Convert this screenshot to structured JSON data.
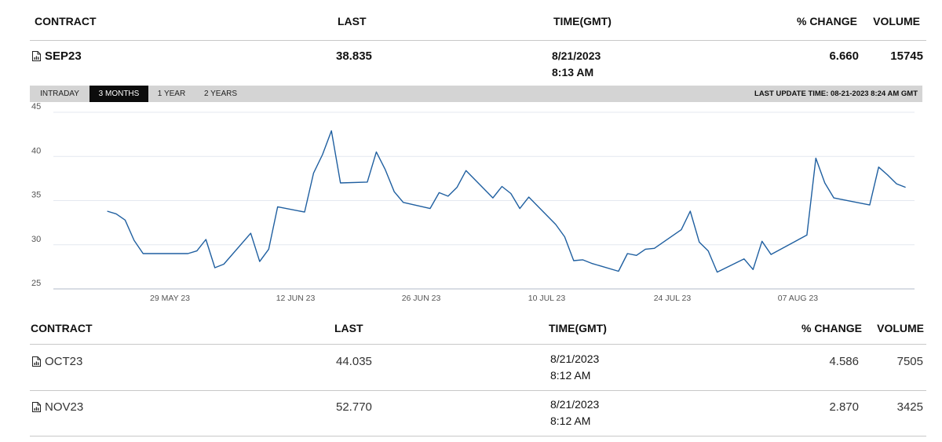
{
  "columns": {
    "contract": "CONTRACT",
    "last": "LAST",
    "time": "TIME(GMT)",
    "change": "% CHANGE",
    "volume": "VOLUME"
  },
  "main": {
    "contract": "SEP23",
    "last": "38.835",
    "date": "8/21/2023",
    "time": "8:13 AM",
    "change": "6.660",
    "volume": "15745"
  },
  "tabs": [
    {
      "label": "INTRADAY",
      "active": false
    },
    {
      "label": "3 MONTHS",
      "active": true
    },
    {
      "label": "1 YEAR",
      "active": false
    },
    {
      "label": "2 YEARS",
      "active": false
    }
  ],
  "last_update": "LAST UPDATE TIME: 08-21-2023 8:24 AM GMT",
  "chart_data": {
    "type": "line",
    "line_color": "#1f5fa0",
    "ylim": [
      25,
      45
    ],
    "y_ticks": [
      "45",
      "40",
      "35",
      "30",
      "25"
    ],
    "x_ticks": [
      "29 MAY 23",
      "12 JUN 23",
      "26 JUN 23",
      "10 JUL 23",
      "24 JUL 23",
      "07 AUG 23"
    ],
    "grid": "horizontal",
    "series": [
      {
        "values": [
          {
            "x": "2023-05-22",
            "y": 33.8
          },
          {
            "x": "2023-05-23",
            "y": 33.5
          },
          {
            "x": "2023-05-24",
            "y": 32.8
          },
          {
            "x": "2023-05-25",
            "y": 30.5
          },
          {
            "x": "2023-05-26",
            "y": 29.0
          },
          {
            "x": "2023-05-30",
            "y": 29.0
          },
          {
            "x": "2023-05-31",
            "y": 29.0
          },
          {
            "x": "2023-06-01",
            "y": 29.3
          },
          {
            "x": "2023-06-02",
            "y": 30.6
          },
          {
            "x": "2023-06-03",
            "y": 27.4
          },
          {
            "x": "2023-06-04",
            "y": 27.8
          },
          {
            "x": "2023-06-07",
            "y": 31.3
          },
          {
            "x": "2023-06-08",
            "y": 28.1
          },
          {
            "x": "2023-06-09",
            "y": 29.5
          },
          {
            "x": "2023-06-10",
            "y": 34.3
          },
          {
            "x": "2023-06-13",
            "y": 33.7
          },
          {
            "x": "2023-06-14",
            "y": 38.1
          },
          {
            "x": "2023-06-15",
            "y": 40.2
          },
          {
            "x": "2023-06-16",
            "y": 42.9
          },
          {
            "x": "2023-06-17",
            "y": 37.0
          },
          {
            "x": "2023-06-20",
            "y": 37.1
          },
          {
            "x": "2023-06-21",
            "y": 40.5
          },
          {
            "x": "2023-06-22",
            "y": 38.5
          },
          {
            "x": "2023-06-23",
            "y": 36.0
          },
          {
            "x": "2023-06-24",
            "y": 34.8
          },
          {
            "x": "2023-06-27",
            "y": 34.1
          },
          {
            "x": "2023-06-28",
            "y": 35.9
          },
          {
            "x": "2023-06-29",
            "y": 35.5
          },
          {
            "x": "2023-06-30",
            "y": 36.5
          },
          {
            "x": "2023-07-01",
            "y": 38.4
          },
          {
            "x": "2023-07-04",
            "y": 35.3
          },
          {
            "x": "2023-07-05",
            "y": 36.6
          },
          {
            "x": "2023-07-06",
            "y": 35.8
          },
          {
            "x": "2023-07-07",
            "y": 34.1
          },
          {
            "x": "2023-07-08",
            "y": 35.4
          },
          {
            "x": "2023-07-11",
            "y": 32.3
          },
          {
            "x": "2023-07-12",
            "y": 30.9
          },
          {
            "x": "2023-07-13",
            "y": 28.2
          },
          {
            "x": "2023-07-14",
            "y": 28.3
          },
          {
            "x": "2023-07-15",
            "y": 27.9
          },
          {
            "x": "2023-07-18",
            "y": 27.0
          },
          {
            "x": "2023-07-19",
            "y": 29.0
          },
          {
            "x": "2023-07-20",
            "y": 28.8
          },
          {
            "x": "2023-07-21",
            "y": 29.5
          },
          {
            "x": "2023-07-22",
            "y": 29.6
          },
          {
            "x": "2023-07-25",
            "y": 31.7
          },
          {
            "x": "2023-07-26",
            "y": 33.8
          },
          {
            "x": "2023-07-27",
            "y": 30.3
          },
          {
            "x": "2023-07-28",
            "y": 29.3
          },
          {
            "x": "2023-07-29",
            "y": 26.9
          },
          {
            "x": "2023-08-01",
            "y": 28.4
          },
          {
            "x": "2023-08-02",
            "y": 27.2
          },
          {
            "x": "2023-08-03",
            "y": 30.4
          },
          {
            "x": "2023-08-04",
            "y": 28.9
          },
          {
            "x": "2023-08-08",
            "y": 31.1
          },
          {
            "x": "2023-08-09",
            "y": 39.8
          },
          {
            "x": "2023-08-10",
            "y": 37.0
          },
          {
            "x": "2023-08-11",
            "y": 35.3
          },
          {
            "x": "2023-08-15",
            "y": 34.5
          },
          {
            "x": "2023-08-16",
            "y": 38.8
          },
          {
            "x": "2023-08-17",
            "y": 37.9
          },
          {
            "x": "2023-08-18",
            "y": 36.9
          },
          {
            "x": "2023-08-19",
            "y": 36.5
          }
        ]
      }
    ]
  },
  "rows": [
    {
      "contract": "OCT23",
      "last": "44.035",
      "date": "8/21/2023",
      "time": "8:12 AM",
      "change": "4.586",
      "volume": "7505"
    },
    {
      "contract": "NOV23",
      "last": "52.770",
      "date": "8/21/2023",
      "time": "8:12 AM",
      "change": "2.870",
      "volume": "3425"
    }
  ]
}
